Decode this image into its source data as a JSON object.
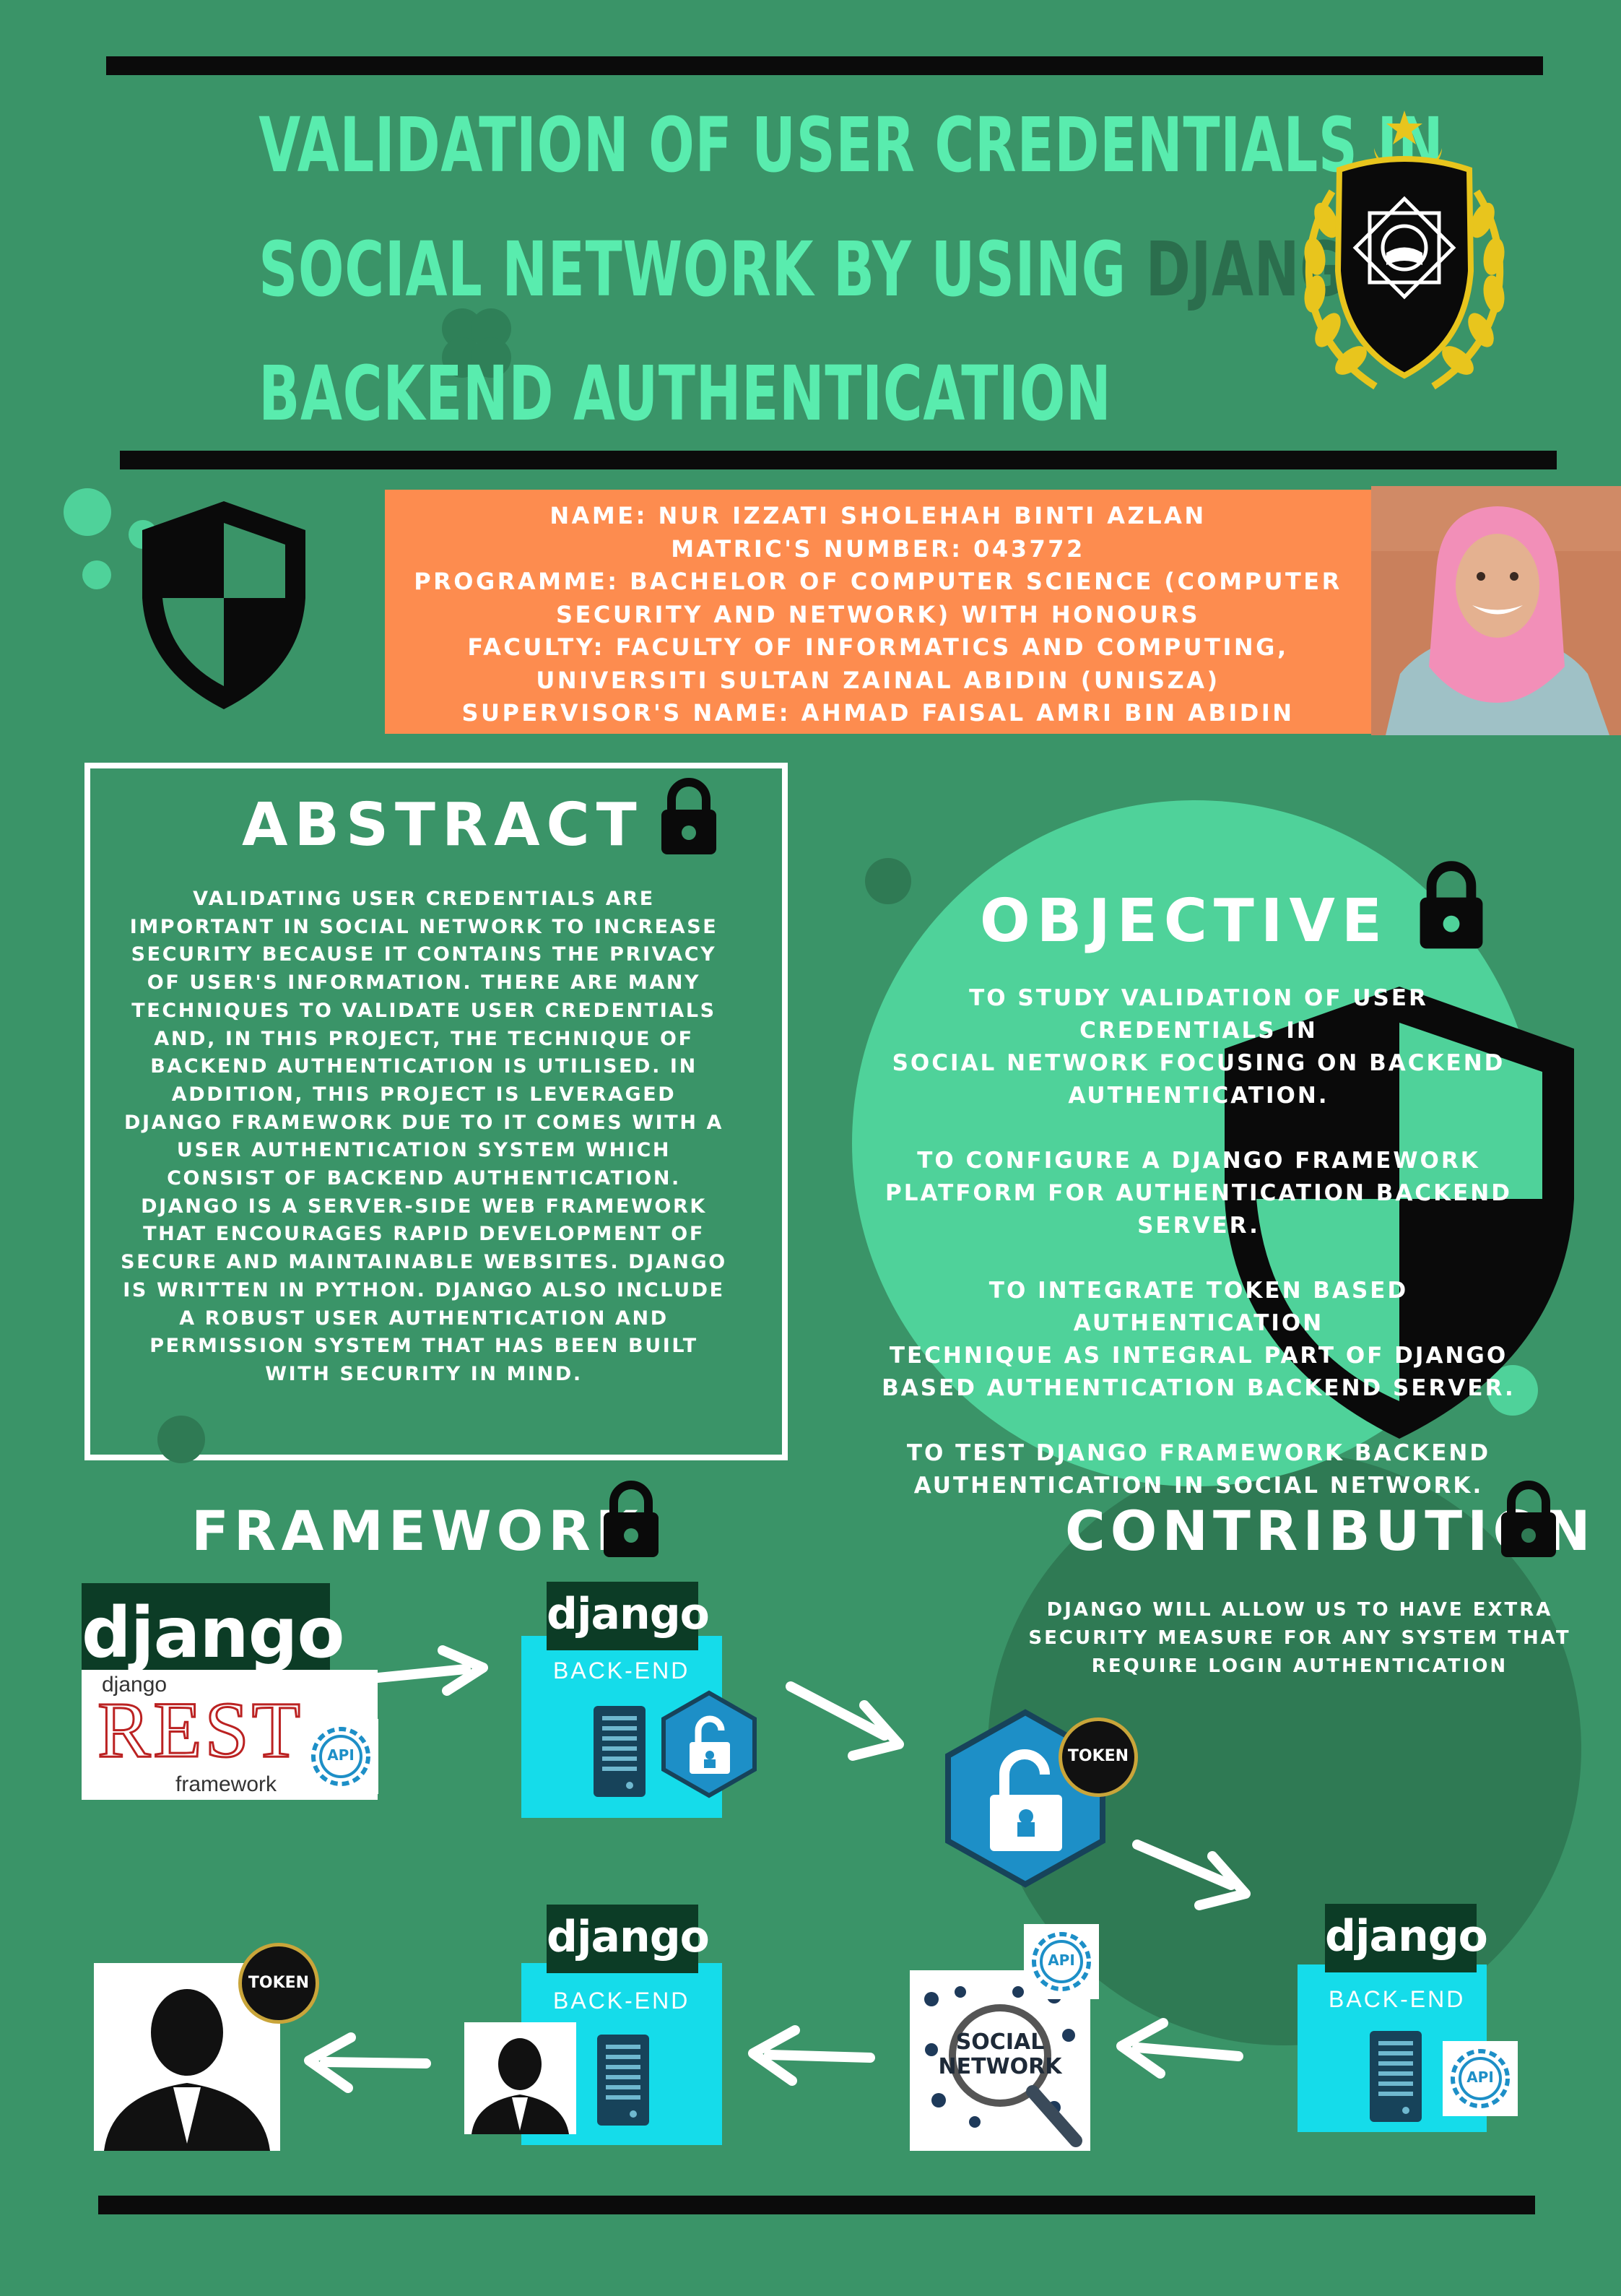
{
  "title": {
    "line1": "VALIDATION OF USER CREDENTIALS IN",
    "line2_part1": "SOCIAL NETWORK BY USING ",
    "line2_part2": "DJANGO",
    "line3": "BACKEND AUTHENTICATION"
  },
  "student_info": {
    "lines": [
      "NAME: NUR IZZATI SHOLEHAH BINTI AZLAN",
      "MATRIC'S NUMBER: 043772",
      "PROGRAMME: BACHELOR OF COMPUTER SCIENCE (COMPUTER",
      "SECURITY AND NETWORK) WITH HONOURS",
      "FACULTY: FACULTY OF INFORMATICS AND COMPUTING,",
      "UNIVERSITI SULTAN ZAINAL ABIDIN (UNISZA)",
      "SUPERVISOR'S NAME: AHMAD FAISAL AMRI BIN ABIDIN"
    ]
  },
  "abstract": {
    "heading": "ABSTRACT",
    "lines": [
      "VALIDATING USER CREDENTIALS ARE",
      "IMPORTANT IN SOCIAL NETWORK TO INCREASE",
      "SECURITY BECAUSE IT CONTAINS THE PRIVACY",
      "OF USER'S INFORMATION.  THERE ARE MANY",
      "TECHNIQUES TO VALIDATE USER CREDENTIALS",
      "AND, IN THIS PROJECT, THE TECHNIQUE OF",
      "BACKEND AUTHENTICATION IS UTILISED.  IN",
      "ADDITION, THIS PROJECT IS LEVERAGED",
      "DJANGO FRAMEWORK DUE TO IT COMES WITH A",
      "USER AUTHENTICATION SYSTEM WHICH",
      "CONSIST OF BACKEND AUTHENTICATION.",
      "DJANGO IS A SERVER-SIDE WEB FRAMEWORK",
      "THAT ENCOURAGES RAPID DEVELOPMENT OF",
      "SECURE AND MAINTAINABLE WEBSITES. DJANGO",
      "IS WRITTEN IN PYTHON.  DJANGO ALSO INCLUDE",
      "A ROBUST USER AUTHENTICATION AND",
      "PERMISSION SYSTEM THAT HAS BEEN BUILT",
      "WITH SECURITY IN MIND."
    ]
  },
  "objective": {
    "heading": "OBJECTIVE",
    "items": [
      [
        "TO STUDY VALIDATION OF USER CREDENTIALS IN",
        "SOCIAL NETWORK FOCUSING ON BACKEND",
        "AUTHENTICATION."
      ],
      [
        "TO CONFIGURE  A DJANGO FRAMEWORK",
        "PLATFORM FOR AUTHENTICATION BACKEND",
        "SERVER."
      ],
      [
        "TO INTEGRATE TOKEN BASED AUTHENTICATION",
        "TECHNIQUE AS INTEGRAL PART OF DJANGO",
        "BASED AUTHENTICATION BACKEND SERVER."
      ],
      [
        "TO TEST DJANGO FRAMEWORK BACKEND",
        "AUTHENTICATION IN SOCIAL NETWORK."
      ]
    ]
  },
  "framework": {
    "heading": "FRAMEWORK"
  },
  "contribution": {
    "heading": "CONTRIBUTION",
    "lines": [
      "DJANGO WILL ALLOW US TO HAVE EXTRA",
      "SECURITY MEASURE FOR ANY SYSTEM THAT",
      "REQUIRE LOGIN AUTHENTICATION"
    ]
  },
  "diagram": {
    "django_logo": "django",
    "rest_small": "django",
    "rest_big": "REST",
    "rest_framework": "framework",
    "api": "API",
    "backend_label": "BACK-END",
    "token": "TOKEN",
    "social_network_1": "SOCIAL",
    "social_network_2": "NETWORK"
  },
  "colors": {
    "background": "#3a9468",
    "title": "#59ecae",
    "info_box": "#fd8c4f",
    "objective_circle": "#4fd29a",
    "contribution_circle": "#2f7a54",
    "backend_box": "#15dcea"
  }
}
